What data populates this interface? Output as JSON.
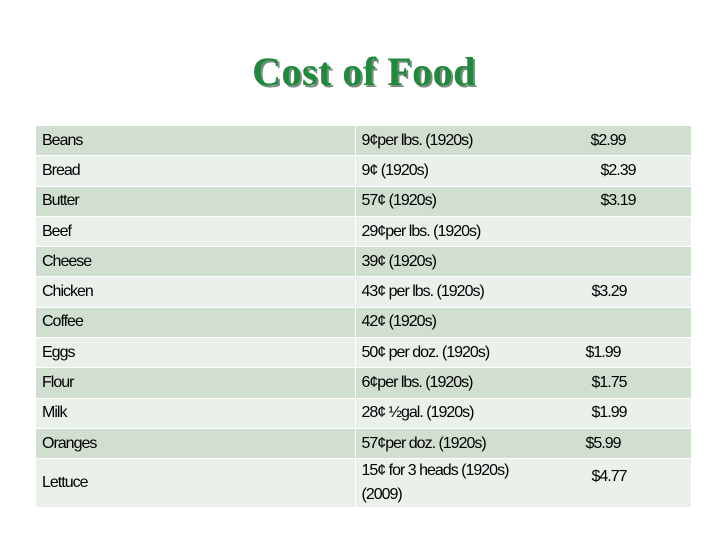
{
  "title": "Cost of Food",
  "rows": [
    {
      "item": "Beans",
      "desc": "9¢per lbs. (1920s)",
      "price": "$2.99"
    },
    {
      "item": "Bread",
      "desc": "9¢ (1920s)",
      "price": "$2.39"
    },
    {
      "item": "Butter",
      "desc": "57¢ (1920s)",
      "price": "$3.19"
    },
    {
      "item": "Beef",
      "desc": "29¢per lbs. (1920s)",
      "price": ""
    },
    {
      "item": "Cheese",
      "desc": "39¢ (1920s)",
      "price": ""
    },
    {
      "item": "Chicken",
      "desc": "43¢ per lbs. (1920s)",
      "price": "$3.29"
    },
    {
      "item": "Coffee",
      "desc": "42¢ (1920s)",
      "price": ""
    },
    {
      "item": "Eggs",
      "desc": "50¢ per doz. (1920s)",
      "price": "$1.99"
    },
    {
      "item": "Flour",
      "desc": "6¢per lbs. (1920s)",
      "price": "$1.75"
    },
    {
      "item": "Milk",
      "desc": "28¢ ½gal. (1920s)",
      "price": "$1.99"
    },
    {
      "item": "Oranges",
      "desc": "57¢per doz. (1920s)",
      "price": "$5.99"
    },
    {
      "item": "Lettuce",
      "desc": "15¢ for 3 heads (1920s) (2009)",
      "price": "$4.77"
    }
  ],
  "colors": {
    "title": "#1e8a3a",
    "row_dark": "#d1dfd1",
    "row_light": "#eaf0ea"
  }
}
